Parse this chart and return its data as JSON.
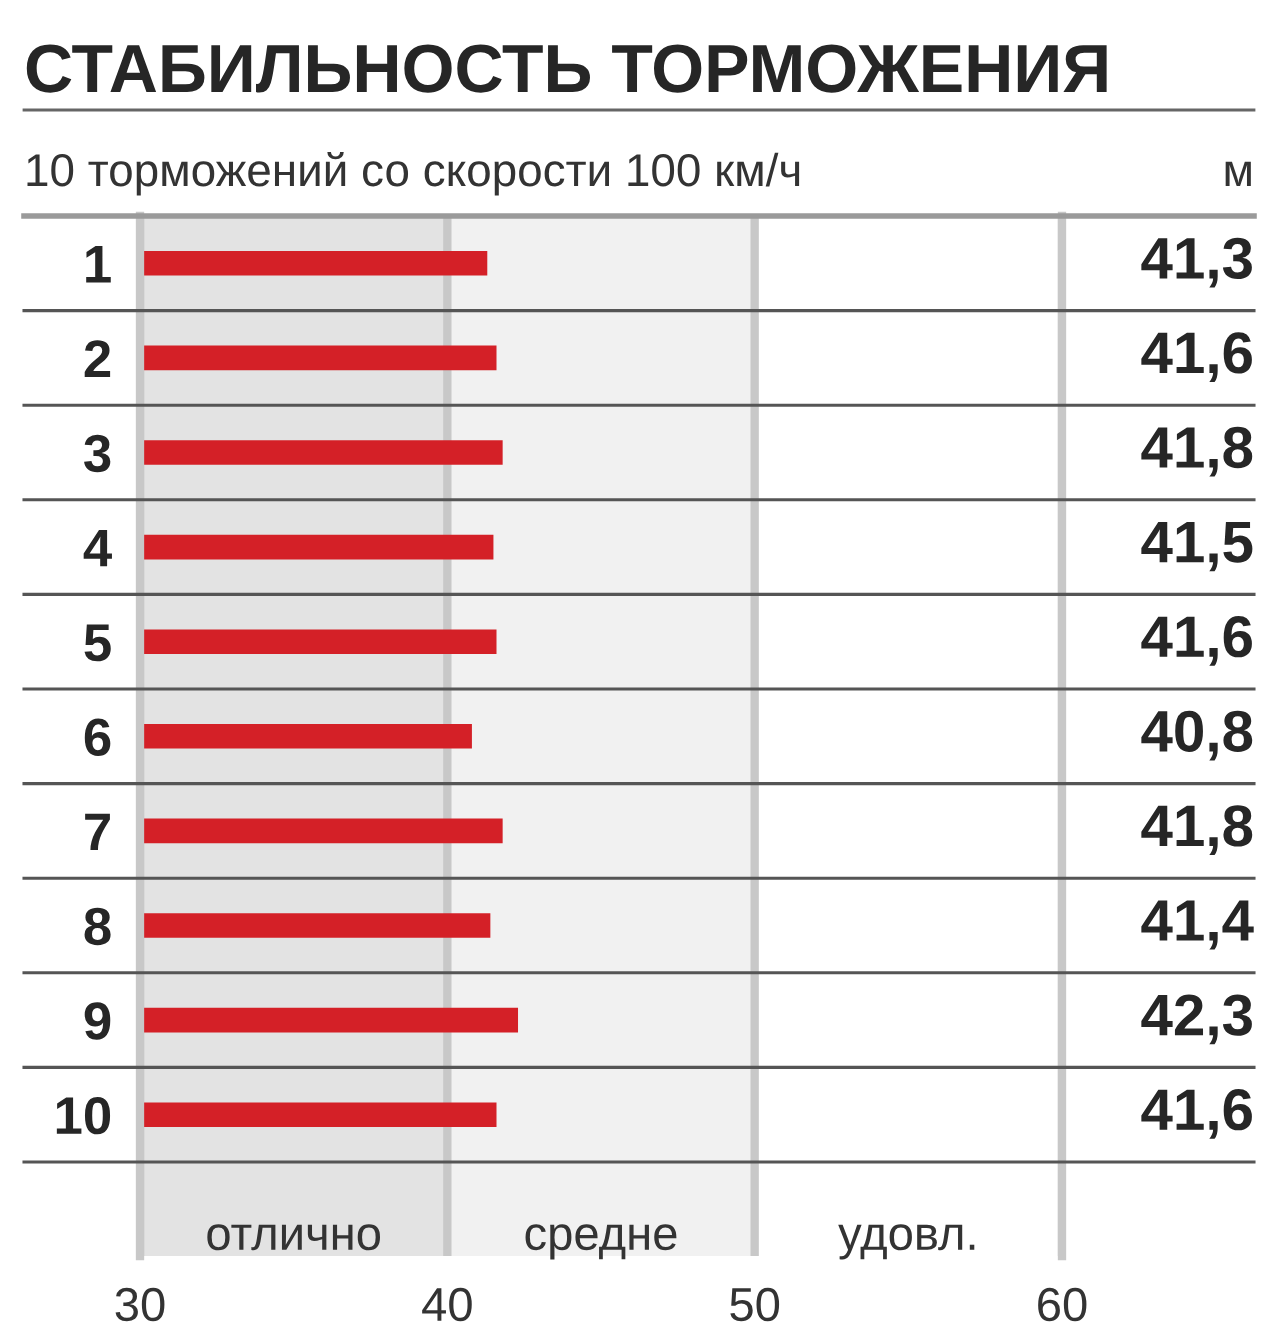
{
  "chart_data": {
    "type": "bar",
    "orientation": "horizontal",
    "title": "СТАБИЛЬНОСТЬ ТОРМОЖЕНИЯ",
    "subtitle": "10 торможений со скорости 100 км/ч",
    "annotations": [
      "м",
      "удовл."
    ],
    "categories": [
      "1",
      "2",
      "3",
      "4",
      "5",
      "6",
      "7",
      "8",
      "9",
      "10"
    ],
    "values": [
      41.3,
      41.6,
      41.8,
      41.5,
      41.6,
      40.8,
      41.8,
      41.4,
      42.3,
      41.6
    ],
    "value_labels": [
      "41,3",
      "41,6",
      "41,8",
      "41,5",
      "41,6",
      "40,8",
      "41,8",
      "41,4",
      "42,3",
      "41,6"
    ],
    "color": "#d42027",
    "xlim": [
      30,
      60
    ],
    "xticks": [
      30,
      40,
      50,
      60
    ],
    "grid": "x",
    "bands": [
      {
        "axis": "x",
        "from": 30,
        "to": 40,
        "label": "отлично",
        "color": "#e3e3e3"
      },
      {
        "axis": "x",
        "from": 40,
        "to": 50,
        "label": "средне",
        "color": "#f1f1f1"
      }
    ]
  }
}
